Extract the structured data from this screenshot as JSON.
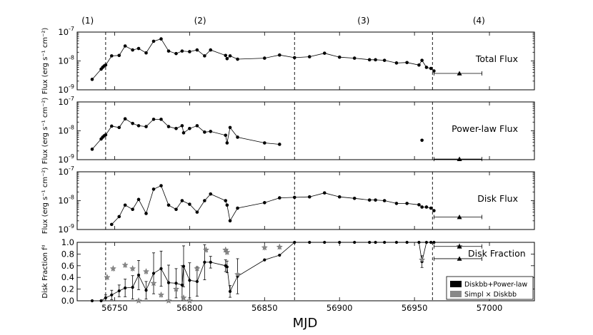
{
  "chart_data": {
    "type": "line",
    "xlabel": "MJD",
    "xlim": [
      56725,
      57030
    ],
    "x_ticks": [
      56750,
      56800,
      56850,
      56900,
      56950,
      57000
    ],
    "period_boundaries": [
      56744,
      56870,
      56962
    ],
    "period_labels": [
      {
        "text": "(1)",
        "x": 56732
      },
      {
        "text": "(2)",
        "x": 56807
      },
      {
        "text": "(3)",
        "x": 56916
      },
      {
        "text": "(4)",
        "x": 56993
      }
    ],
    "panels": [
      {
        "id": "total",
        "title": "Total Flux",
        "ylabel": "Flux (erg s⁻¹ cm⁻²)",
        "yscale": "log",
        "ylim_exp": [
          -9,
          -7
        ],
        "ytick_exps": [
          -9,
          -8,
          -7
        ],
        "points": [
          [
            56735,
            2.3e-09
          ],
          [
            56741,
            5.2e-09
          ],
          [
            56742,
            6e-09
          ],
          [
            56743,
            6.7e-09
          ],
          [
            56744,
            7.2e-09
          ],
          [
            56748,
            1.5e-08
          ],
          [
            56753,
            1.55e-08
          ],
          [
            56757,
            3.3e-08
          ],
          [
            56762,
            2.4e-08
          ],
          [
            56766,
            2.7e-08
          ],
          [
            56771,
            1.9e-08
          ],
          [
            56776,
            4.8e-08
          ],
          [
            56781,
            5.8e-08
          ],
          [
            56786,
            2.2e-08
          ],
          [
            56791,
            1.8e-08
          ],
          [
            56795,
            2.2e-08
          ],
          [
            56800,
            2.1e-08
          ],
          [
            56805,
            2.4e-08
          ],
          [
            56810,
            1.5e-08
          ],
          [
            56814,
            2.4e-08
          ],
          [
            56824,
            1.55e-08
          ],
          [
            56825,
            1.2e-08
          ],
          [
            56827,
            1.5e-08
          ],
          [
            56832,
            1.15e-08
          ],
          [
            56850,
            1.25e-08
          ],
          [
            56860,
            1.6e-08
          ],
          [
            56870,
            1.3e-08
          ],
          [
            56880,
            1.4e-08
          ],
          [
            56890,
            1.85e-08
          ],
          [
            56900,
            1.35e-08
          ],
          [
            56910,
            1.25e-08
          ],
          [
            56920,
            1.1e-08
          ],
          [
            56924,
            1.1e-08
          ],
          [
            56930,
            1.05e-08
          ],
          [
            56938,
            8.5e-09
          ],
          [
            56945,
            8.8e-09
          ],
          [
            56953,
            7.2e-09
          ],
          [
            56955,
            1.05e-08
          ],
          [
            56958,
            6e-09
          ],
          [
            56961,
            5.5e-09
          ],
          [
            56963,
            4.5e-09
          ]
        ],
        "upper_limit": {
          "x": 56980,
          "y": 3.7e-09,
          "xerr": [
            56963,
            56995
          ]
        }
      },
      {
        "id": "powerlaw",
        "title": "Power-law Flux",
        "ylabel": "Flux (erg s⁻¹ cm⁻²)",
        "yscale": "log",
        "ylim_exp": [
          -9,
          -7
        ],
        "ytick_exps": [
          -9,
          -8,
          -7
        ],
        "points": [
          [
            56735,
            2.3e-09
          ],
          [
            56741,
            5.2e-09
          ],
          [
            56742,
            6e-09
          ],
          [
            56743,
            6.7e-09
          ],
          [
            56744,
            7.2e-09
          ],
          [
            56748,
            1.45e-08
          ],
          [
            56753,
            1.3e-08
          ],
          [
            56757,
            2.6e-08
          ],
          [
            56762,
            1.8e-08
          ],
          [
            56766,
            1.5e-08
          ],
          [
            56771,
            1.4e-08
          ],
          [
            56776,
            2.5e-08
          ],
          [
            56781,
            2.5e-08
          ],
          [
            56786,
            1.4e-08
          ],
          [
            56791,
            1.2e-08
          ],
          [
            56795,
            1.5e-08
          ],
          [
            56796,
            8.5e-09
          ],
          [
            56800,
            1.2e-08
          ],
          [
            56805,
            1.5e-08
          ],
          [
            56810,
            9e-09
          ],
          [
            56814,
            9.5e-09
          ],
          [
            56824,
            7e-09
          ],
          [
            56825,
            3.8e-09
          ],
          [
            56827,
            1.3e-08
          ],
          [
            56832,
            6e-09
          ],
          [
            56850,
            3.8e-09
          ],
          [
            56860,
            3.4e-09
          ]
        ],
        "isolated_points": [
          [
            56955,
            4.7e-09
          ]
        ],
        "upper_limit": {
          "x": 56980,
          "y": 1.05e-09,
          "xerr": [
            56963,
            56995
          ]
        }
      },
      {
        "id": "disk",
        "title": "Disk Flux",
        "ylabel": "Flux (erg s⁻¹ cm⁻²)",
        "yscale": "log",
        "ylim_exp": [
          -9,
          -7
        ],
        "ytick_exps": [
          -9,
          -8,
          -7
        ],
        "points": [
          [
            56748,
            1.5e-09
          ],
          [
            56753,
            2.8e-09
          ],
          [
            56757,
            7e-09
          ],
          [
            56762,
            5e-09
          ],
          [
            56766,
            1.1e-08
          ],
          [
            56771,
            3.6e-09
          ],
          [
            56776,
            2.5e-08
          ],
          [
            56781,
            3.3e-08
          ],
          [
            56786,
            7e-09
          ],
          [
            56791,
            5e-09
          ],
          [
            56795,
            1e-08
          ],
          [
            56800,
            7.5e-09
          ],
          [
            56805,
            4e-09
          ],
          [
            56810,
            1e-08
          ],
          [
            56814,
            1.7e-08
          ],
          [
            56824,
            1e-08
          ],
          [
            56825,
            7e-09
          ],
          [
            56827,
            2e-09
          ],
          [
            56832,
            5.5e-09
          ],
          [
            56850,
            8.5e-09
          ],
          [
            56860,
            1.25e-08
          ],
          [
            56870,
            1.3e-08
          ],
          [
            56880,
            1.35e-08
          ],
          [
            56890,
            1.85e-08
          ],
          [
            56900,
            1.35e-08
          ],
          [
            56910,
            1.2e-08
          ],
          [
            56920,
            1.05e-08
          ],
          [
            56924,
            1.05e-08
          ],
          [
            56930,
            1e-08
          ],
          [
            56938,
            8e-09
          ],
          [
            56945,
            8e-09
          ],
          [
            56953,
            7.2e-09
          ],
          [
            56955,
            6e-09
          ],
          [
            56958,
            6e-09
          ],
          [
            56961,
            5.5e-09
          ],
          [
            56963,
            4.5e-09
          ]
        ],
        "upper_limit": {
          "x": 56980,
          "y": 2.7e-09,
          "xerr": [
            56963,
            56995
          ]
        }
      },
      {
        "id": "fraction",
        "title": "Disk Fraction",
        "ylabel": "Disk Fraction fᵈ",
        "yscale": "linear",
        "ylim": [
          0,
          1.0
        ],
        "yticks": [
          0.0,
          0.2,
          0.4,
          0.6,
          0.8,
          1.0
        ],
        "tick_labels": [
          "0.0",
          "0.2",
          "0.4",
          "0.6",
          "0.8",
          "1.0"
        ],
        "diskbb_powerlaw": [
          [
            56735,
            0.0,
            0.0
          ],
          [
            56741,
            0.0,
            0.0
          ],
          [
            56744,
            0.05,
            0.05
          ],
          [
            56748,
            0.1,
            0.08
          ],
          [
            56753,
            0.17,
            0.1
          ],
          [
            56757,
            0.22,
            0.15
          ],
          [
            56762,
            0.23,
            0.2
          ],
          [
            56766,
            0.44,
            0.25
          ],
          [
            56771,
            0.18,
            0.15
          ],
          [
            56776,
            0.47,
            0.35
          ],
          [
            56781,
            0.55,
            0.3
          ],
          [
            56786,
            0.31,
            0.3
          ],
          [
            56791,
            0.3,
            0.25
          ],
          [
            56795,
            0.27,
            0.33
          ],
          [
            56796,
            0.59,
            0.35
          ],
          [
            56800,
            0.35,
            0.3
          ],
          [
            56805,
            0.33,
            0.25
          ],
          [
            56810,
            0.66,
            0.3
          ],
          [
            56814,
            0.66,
            0.1
          ],
          [
            56824,
            0.6,
            0.1
          ],
          [
            56825,
            0.58,
            0.1
          ],
          [
            56827,
            0.16,
            0.1
          ],
          [
            56832,
            0.42,
            0.3
          ],
          [
            56850,
            0.7,
            0.0
          ],
          [
            56860,
            0.78,
            0.0
          ],
          [
            56870,
            1.0,
            0.0
          ],
          [
            56880,
            1.0,
            0.0
          ],
          [
            56890,
            1.0,
            0.0
          ],
          [
            56900,
            1.0,
            0.0
          ],
          [
            56910,
            1.0,
            0.0
          ],
          [
            56920,
            1.0,
            0.0
          ],
          [
            56924,
            1.0,
            0.0
          ],
          [
            56930,
            1.0,
            0.0
          ],
          [
            56938,
            1.0,
            0.0
          ],
          [
            56945,
            1.0,
            0.0
          ],
          [
            56953,
            1.0,
            0.0
          ],
          [
            56955,
            0.67,
            0.1
          ],
          [
            56958,
            1.0,
            0.0
          ],
          [
            56961,
            1.0,
            0.0
          ],
          [
            56963,
            1.0,
            0.0
          ]
        ],
        "simpl_diskbb": [
          [
            56745,
            0.4,
            0.05
          ],
          [
            56749,
            0.55,
            0.05
          ],
          [
            56757,
            0.61,
            0.05
          ],
          [
            56762,
            0.55,
            0.05
          ],
          [
            56766,
            0.0,
            0.05
          ],
          [
            56771,
            0.5,
            0.05
          ],
          [
            56776,
            0.3,
            0.05
          ],
          [
            56781,
            0.1,
            0.05
          ],
          [
            56786,
            0.0,
            0.05
          ],
          [
            56791,
            0.2,
            0.05
          ],
          [
            56796,
            0.05,
            0.05
          ],
          [
            56800,
            0.0,
            0.05
          ],
          [
            56805,
            0.55,
            0.05
          ],
          [
            56811,
            0.87,
            0.05
          ],
          [
            56824,
            0.87,
            0.05
          ],
          [
            56825,
            0.83,
            0.05
          ],
          [
            56832,
            0.45,
            0.05
          ],
          [
            56850,
            0.91,
            0.05
          ],
          [
            56860,
            0.92,
            0.05
          ],
          [
            56955,
            0.7,
            0.05
          ],
          [
            56980,
            0.93,
            0.05
          ]
        ],
        "upper_limits": [
          {
            "x": 56980,
            "y": 0.72,
            "xerr": [
              56963,
              56995
            ]
          },
          {
            "x": 56980,
            "y": 0.93,
            "xerr": [
              56963,
              56995
            ]
          }
        ],
        "legend": [
          {
            "label": "Diskbb+Power-law",
            "color": "#000000"
          },
          {
            "label": "Simpl × Diskbb",
            "color": "#888888"
          }
        ],
        "legend_position": "lower-right"
      }
    ]
  }
}
